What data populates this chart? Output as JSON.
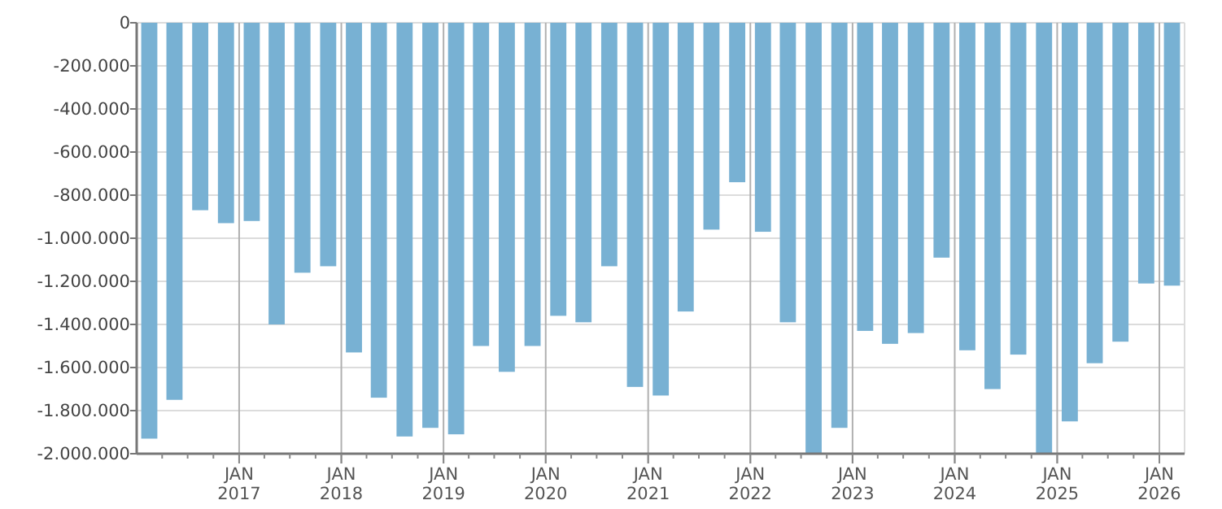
{
  "chart_data": {
    "type": "bar",
    "color": "#78b1d3",
    "x": [
      "2016-02-15",
      "2016-05-15",
      "2016-08-15",
      "2016-11-15",
      "2017-02-15",
      "2017-05-15",
      "2017-08-15",
      "2017-11-15",
      "2018-02-15",
      "2018-05-15",
      "2018-08-15",
      "2018-11-15",
      "2019-02-15",
      "2019-05-15",
      "2019-08-15",
      "2019-11-15",
      "2020-02-15",
      "2020-05-15",
      "2020-08-15",
      "2020-11-15",
      "2021-02-15",
      "2021-05-15",
      "2021-08-15",
      "2021-11-15",
      "2022-02-15",
      "2022-05-15",
      "2022-08-15",
      "2022-11-15",
      "2023-02-15",
      "2023-05-15",
      "2023-08-15",
      "2023-11-15",
      "2024-02-15",
      "2024-05-15",
      "2024-08-15",
      "2024-11-15",
      "2025-02-15",
      "2025-05-15",
      "2025-08-15",
      "2025-11-15",
      "2026-02-15"
    ],
    "values": [
      -1930000,
      -1750000,
      -870000,
      -930000,
      -920000,
      -1400000,
      -1160000,
      -1130000,
      -1530000,
      -1740000,
      -1920000,
      -1880000,
      -1910000,
      -1500000,
      -1620000,
      -1500000,
      -1360000,
      -1390000,
      -1130000,
      -1690000,
      -1730000,
      -1340000,
      -960000,
      -740000,
      -970000,
      -1390000,
      -2000000,
      -1880000,
      -1430000,
      -1490000,
      -1440000,
      -1090000,
      -1520000,
      -1700000,
      -1540000,
      -2000000,
      -1850000,
      -1580000,
      -1480000,
      -1210000,
      -1220000
    ],
    "xlim": [
      "2016-01-01",
      "2026-04-01"
    ],
    "xticks": [
      {
        "value": "2016-04-01",
        "label": null
      },
      {
        "value": "2016-07-01",
        "label": null
      },
      {
        "value": "2016-10-01",
        "label": null
      },
      {
        "value": "2017-01-01",
        "label": "JAN 2017"
      },
      {
        "value": "2017-04-01",
        "label": null
      },
      {
        "value": "2017-07-01",
        "label": null
      },
      {
        "value": "2017-10-01",
        "label": null
      },
      {
        "value": "2018-01-01",
        "label": "JAN 2018"
      },
      {
        "value": "2018-04-01",
        "label": null
      },
      {
        "value": "2018-07-01",
        "label": null
      },
      {
        "value": "2018-10-01",
        "label": null
      },
      {
        "value": "2019-01-01",
        "label": "JAN 2019"
      },
      {
        "value": "2019-04-01",
        "label": null
      },
      {
        "value": "2019-07-01",
        "label": null
      },
      {
        "value": "2019-10-01",
        "label": null
      },
      {
        "value": "2020-01-01",
        "label": "JAN 2020"
      },
      {
        "value": "2020-04-01",
        "label": null
      },
      {
        "value": "2020-07-01",
        "label": null
      },
      {
        "value": "2020-10-01",
        "label": null
      },
      {
        "value": "2021-01-01",
        "label": "JAN 2021"
      },
      {
        "value": "2021-04-01",
        "label": null
      },
      {
        "value": "2021-07-01",
        "label": null
      },
      {
        "value": "2021-10-01",
        "label": null
      },
      {
        "value": "2022-01-01",
        "label": "JAN 2022"
      },
      {
        "value": "2022-04-01",
        "label": null
      },
      {
        "value": "2022-07-01",
        "label": null
      },
      {
        "value": "2022-10-01",
        "label": null
      },
      {
        "value": "2023-01-01",
        "label": "JAN 2023"
      },
      {
        "value": "2023-04-01",
        "label": null
      },
      {
        "value": "2023-07-01",
        "label": null
      },
      {
        "value": "2023-10-01",
        "label": null
      },
      {
        "value": "2024-01-01",
        "label": "JAN 2024"
      },
      {
        "value": "2024-04-01",
        "label": null
      },
      {
        "value": "2024-07-01",
        "label": null
      },
      {
        "value": "2024-10-01",
        "label": null
      },
      {
        "value": "2025-01-01",
        "label": "JAN 2025"
      },
      {
        "value": "2025-04-01",
        "label": null
      },
      {
        "value": "2025-07-01",
        "label": null
      },
      {
        "value": "2025-10-01",
        "label": null
      },
      {
        "value": "2026-01-01",
        "label": "JAN 2026"
      }
    ],
    "ylim": [
      -2000000,
      0
    ],
    "yticks": [
      {
        "value": -2000000,
        "label": "-2.000.000"
      },
      {
        "value": -1800000,
        "label": "-1.800.000"
      },
      {
        "value": -1600000,
        "label": "-1.600.000"
      },
      {
        "value": -1400000,
        "label": "-1.400.000"
      },
      {
        "value": -1200000,
        "label": "-1.200.000"
      },
      {
        "value": -1000000,
        "label": "-1.000.000"
      },
      {
        "value": -800000,
        "label": "-800.000"
      },
      {
        "value": -600000,
        "label": "-600.000"
      },
      {
        "value": -400000,
        "label": "-400.000"
      },
      {
        "value": -200000,
        "label": "-200.000"
      },
      0
    ],
    "grid": true
  }
}
